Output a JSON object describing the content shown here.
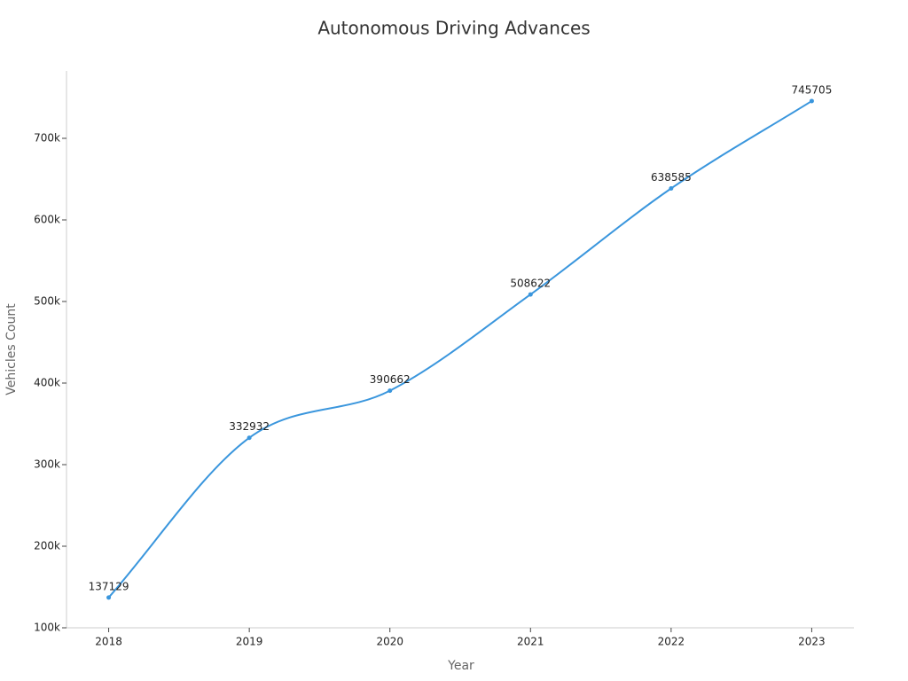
{
  "chart_data": {
    "type": "line",
    "title": "Autonomous Driving Advances",
    "x_label": "Year",
    "y_label": "Vehicles Count",
    "x": [
      2018,
      2019,
      2020,
      2021,
      2022,
      2023
    ],
    "xlim": [
      2017.7,
      2023.3
    ],
    "xticks": [
      2018,
      2019,
      2020,
      2021,
      2022,
      2023
    ],
    "series": [
      {
        "name": "Vehicles Count",
        "color": "#3a96dd",
        "values": [
          137129,
          332932,
          390662,
          508622,
          638585,
          745705
        ]
      }
    ],
    "ylim": [
      100000,
      782600
    ],
    "yticks": [
      {
        "value": 100000,
        "label": "100k"
      },
      {
        "value": 200000,
        "label": "200k"
      },
      {
        "value": 300000,
        "label": "300k"
      },
      {
        "value": 400000,
        "label": "400k"
      },
      {
        "value": 500000,
        "label": "500k"
      },
      {
        "value": 600000,
        "label": "600k"
      },
      {
        "value": 700000,
        "label": "700k"
      }
    ],
    "grid": false,
    "smooth": true
  }
}
